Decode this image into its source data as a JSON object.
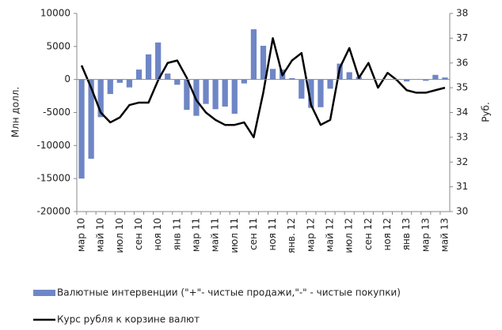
{
  "chart_data": {
    "type": "bar_line",
    "categories": [
      "мар 10",
      null,
      "май 10",
      null,
      "июл 10",
      null,
      "сен 10",
      null,
      "ноя 10",
      null,
      "янв 11",
      null,
      "мар 11",
      null,
      "май 11",
      null,
      "июл 11",
      null,
      "сен 11",
      null,
      "ноя 11",
      null,
      "янв. 12",
      null,
      "мар 12",
      null,
      "май 12",
      null,
      "июл 12",
      null,
      "сен 12",
      null,
      "ноя 12",
      null,
      "янв 13",
      null,
      "мар 13",
      null,
      "май 13"
    ],
    "series": [
      {
        "name": "Валютные интервенции (\"+\"- чистые продажи,\"-\" - чистые покупки)",
        "type": "bar",
        "color": "#6f86c6",
        "values": [
          -15000,
          -12000,
          -5700,
          -2200,
          -500,
          -1200,
          1500,
          3800,
          5600,
          900,
          -800,
          -4600,
          -5500,
          -3700,
          -4500,
          -4100,
          -5200,
          -600,
          7600,
          5100,
          1600,
          1500,
          200,
          -2900,
          -4300,
          -4200,
          -1400,
          2400,
          1100,
          400,
          0,
          0,
          0,
          0,
          -300,
          0,
          -200,
          700,
          300
        ]
      },
      {
        "name": "Курс рубля к корзине валют",
        "type": "line",
        "axis": "y2",
        "color": "#000000",
        "values": [
          35.9,
          35.0,
          34.0,
          33.6,
          33.8,
          34.3,
          34.4,
          34.4,
          35.3,
          36.0,
          36.1,
          35.4,
          34.5,
          34.0,
          33.7,
          33.5,
          33.5,
          33.6,
          33.0,
          34.8,
          37.0,
          35.5,
          36.1,
          36.4,
          34.3,
          33.5,
          33.7,
          35.8,
          36.6,
          35.4,
          36.0,
          35.0,
          35.6,
          35.3,
          34.9,
          34.8,
          34.8,
          34.9,
          35.0
        ]
      }
    ],
    "ylabel": "Млн долл.",
    "y2label": "Руб.",
    "ylim": [
      -20000,
      10000
    ],
    "yticks": [
      -20000,
      -15000,
      -10000,
      -5000,
      0,
      5000,
      10000
    ],
    "y2lim": [
      30,
      38
    ],
    "y2ticks": [
      30,
      31,
      32,
      33,
      34,
      35,
      36,
      37,
      38
    ]
  }
}
